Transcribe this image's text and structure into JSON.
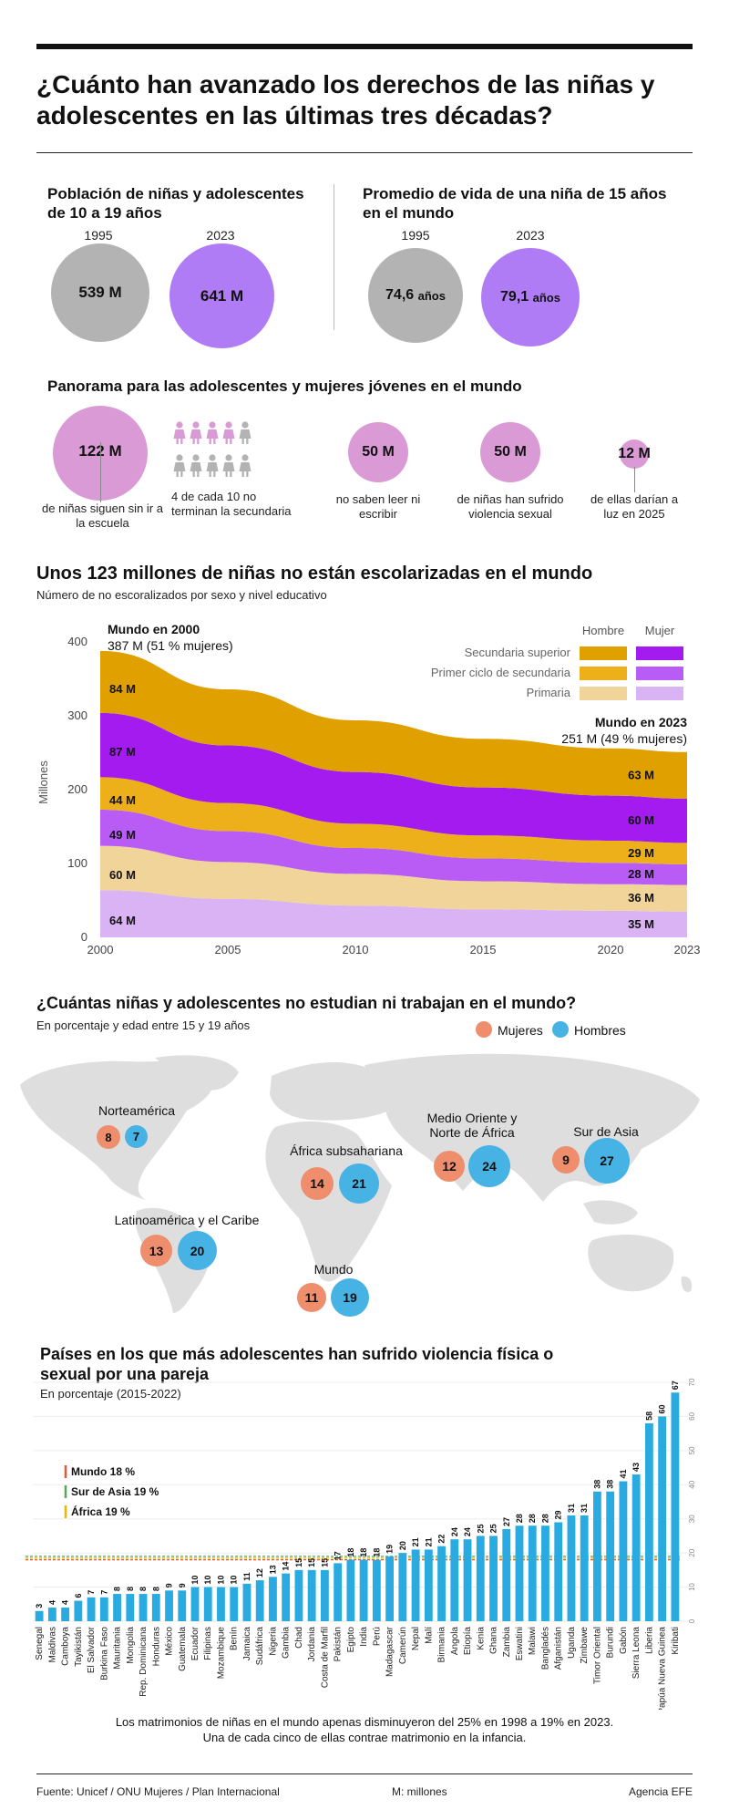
{
  "title": "¿Cuánto han avanzado los derechos de las niñas y adolescentes en las últimas tres décadas?",
  "population": {
    "title": "Población de niñas y adolescentes de 10 a 19 años",
    "year1": "1995",
    "year2": "2023",
    "value1": "539 M",
    "value2": "641 M"
  },
  "life": {
    "title": "Promedio de vida de una niña de 15 años en el mundo",
    "year1": "1995",
    "year2": "2023",
    "value1": "74,6",
    "value2": "79,1",
    "unit": "años"
  },
  "panorama": {
    "title": "Panorama para las adolescentes y mujeres jóvenes en el mundo",
    "items": [
      {
        "value": "122 M",
        "caption": "de niñas siguen sin ir a la escuela"
      },
      {
        "value": "50 M",
        "caption": "no saben leer ni escribir"
      },
      {
        "value": "50 M",
        "caption": "de niñas han sufrido violencia sexual"
      },
      {
        "value": "12 M",
        "caption": "de ellas darían a luz en 2025"
      }
    ],
    "pictogram_caption": "4 de cada 10 no terminan la secundaria"
  },
  "colors": {
    "gray_circle": "#b3b3b3",
    "purple_circle": "#b07cf5",
    "pink": "#da9ad6",
    "sec_sup_h": "#e0a100",
    "sec_sup_m": "#a41bf0",
    "prim_ciclo_h": "#eeb01a",
    "prim_ciclo_m": "#b95cf5",
    "prim_h": "#f0d49a",
    "prim_m": "#d9b3f3",
    "women_dot": "#ee8e6c",
    "men_dot": "#47b2e4",
    "bar": "#29abe2",
    "map": "#dedede"
  },
  "chart_data": [
    {
      "type": "area",
      "title": "Unos 123 millones de niñas no están escolarizadas en el mundo",
      "subtitle": "Número de no escoralizados por sexo y nivel educativo",
      "ylabel": "Millones",
      "ylim": [
        0,
        420
      ],
      "yticks": [
        "0",
        "100",
        "200",
        "300",
        "400"
      ],
      "x": [
        2000,
        2005,
        2010,
        2015,
        2020,
        2023
      ],
      "xticks": [
        "2000",
        "2005",
        "2010",
        "2015",
        "2020",
        "2023"
      ],
      "legend_header_h": "Hombre",
      "legend_header_m": "Mujer",
      "legend_labels": [
        "Secundaria superior",
        "Primer ciclo de secundaria",
        "Primaria"
      ],
      "series": [
        {
          "name": "Primaria Mujer",
          "values": [
            64,
            52,
            43,
            38,
            36,
            35
          ],
          "label_start": "64 M",
          "label_end": "35 M"
        },
        {
          "name": "Primaria Hombre",
          "values": [
            60,
            50,
            43,
            38,
            36,
            36
          ],
          "label_start": "60 M",
          "label_end": "36 M"
        },
        {
          "name": "Primer ciclo de secundaria Mujer",
          "values": [
            49,
            42,
            35,
            31,
            29,
            28
          ],
          "label_start": "49 M",
          "label_end": "28 M"
        },
        {
          "name": "Primer ciclo de secundaria Hombre",
          "values": [
            44,
            38,
            33,
            31,
            30,
            29
          ],
          "label_start": "44 M",
          "label_end": "29 M"
        },
        {
          "name": "Secundaria superior Mujer",
          "values": [
            87,
            78,
            70,
            65,
            61,
            60
          ],
          "label_start": "87 M",
          "label_end": "60 M"
        },
        {
          "name": "Secundaria superior Hombre",
          "values": [
            84,
            76,
            70,
            66,
            64,
            63
          ],
          "label_start": "84 M",
          "label_end": "63 M"
        }
      ],
      "annotation_start_title": "Mundo en 2000",
      "annotation_start_text": "387 M (51 % mujeres)",
      "annotation_end_title": "Mundo en 2023",
      "annotation_end_text": "251 M (49 % mujeres)"
    },
    {
      "type": "scatter",
      "title": "¿Cuántas niñas y adolescentes no estudian ni trabajan en el mundo?",
      "subtitle": "En porcentaje y edad entre 15 y 19 años",
      "legend": [
        "Mujeres",
        "Hombres"
      ],
      "regions": [
        {
          "name": "Norteamérica",
          "women": 8,
          "men": 7
        },
        {
          "name": "África subsahariana",
          "women": 14,
          "men": 21
        },
        {
          "name": "Medio Oriente y Norte de África",
          "women": 12,
          "men": 24
        },
        {
          "name": "Sur de Asia",
          "women": 9,
          "men": 27
        },
        {
          "name": "Latinoamérica y el Caribe",
          "women": 13,
          "men": 20
        },
        {
          "name": "Mundo",
          "women": 11,
          "men": 19
        }
      ]
    },
    {
      "type": "bar",
      "title": "Países en los que más adolescentes han sufrido violencia física o sexual por una pareja",
      "subtitle": "En porcentaje (2015-2022)",
      "ylim": [
        0,
        70
      ],
      "yticks": [
        "0",
        "10",
        "20",
        "30",
        "40",
        "50",
        "60",
        "70"
      ],
      "references": [
        {
          "label": "Mundo 18 %",
          "value": 18,
          "color": "#e05a3a"
        },
        {
          "label": "Sur de Asia 19 %",
          "value": 19,
          "color": "#5aa35a"
        },
        {
          "label": "África 19 %",
          "value": 19,
          "color": "#f0b400"
        }
      ],
      "categories": [
        "Senegal",
        "Maldivas",
        "Camboya",
        "Tayikistán",
        "El Salvador",
        "Burkina Faso",
        "Mauritania",
        "Mongolia",
        "Rep. Dominicana",
        "Honduras",
        "México",
        "Guatemala",
        "Ecuador",
        "Filipinas",
        "Mozambique",
        "Benín",
        "Jamaica",
        "Sudáfrica",
        "Nigeria",
        "Gambia",
        "Chad",
        "Jordania",
        "Costa de Marfil",
        "Pakistán",
        "Egipto",
        "India",
        "Perú",
        "Madagascar",
        "Camerún",
        "Nepal",
        "Malí",
        "Birmania",
        "Angola",
        "Etiopía",
        "Kenia",
        "Ghana",
        "Zambia",
        "Eswatini",
        "Malawi",
        "Bangladés",
        "Afganistán",
        "Uganda",
        "Zimbawe",
        "Timor Oriental",
        "Burundi",
        "Gabón",
        "Sierra Leona",
        "Liberia",
        "Papúa Nueva Guinea",
        "Kiribati"
      ],
      "values": [
        3,
        4,
        4,
        6,
        7,
        7,
        8,
        8,
        8,
        8,
        9,
        9,
        10,
        10,
        10,
        10,
        11,
        12,
        13,
        14,
        15,
        15,
        15,
        17,
        18,
        18,
        18,
        19,
        20,
        21,
        21,
        22,
        24,
        24,
        25,
        25,
        27,
        28,
        28,
        28,
        29,
        31,
        31,
        38,
        38,
        41,
        43,
        58,
        60,
        67
      ]
    }
  ],
  "note_line1": "Los matrimonios de niñas en el mundo apenas disminuyeron del 25% en 1998 a 19% en 2023.",
  "note_line2": "Una de cada cinco de ellas contrae matrimonio en la infancia.",
  "footer": {
    "source": "Fuente: Unicef / ONU Mujeres / Plan Internacional",
    "unit": "M: millones",
    "agency": "Agencia EFE"
  }
}
